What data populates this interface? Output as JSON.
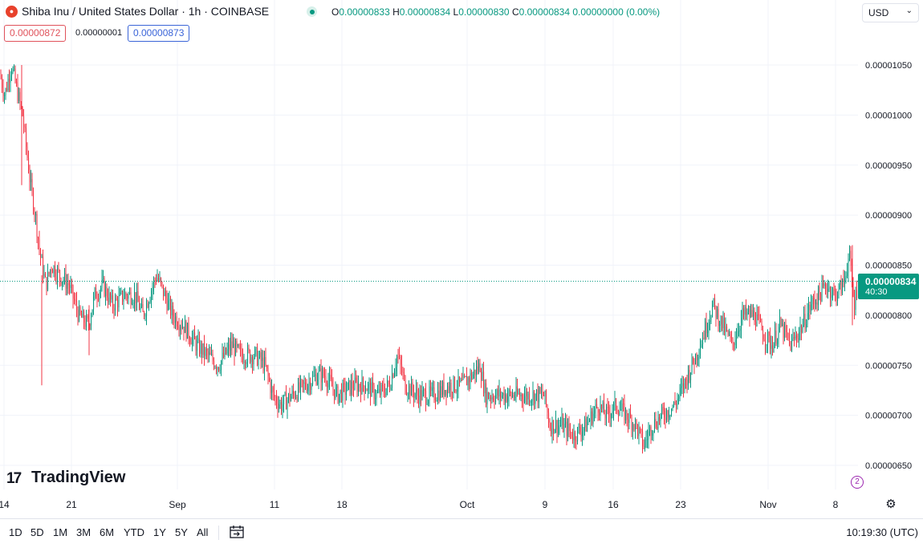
{
  "header": {
    "symbol_icon": "shiba-inu-logo-icon",
    "title": "Shiba Inu / United States Dollar · 1h · COINBASE",
    "ohlc": {
      "o_key": "O",
      "o_val": "0.00000833",
      "h_key": "H",
      "h_val": "0.00000834",
      "l_key": "L",
      "l_val": "0.00000830",
      "c_key": "C",
      "c_val": "0.00000834 0.00000000 (0.00%)"
    },
    "currency": "USD"
  },
  "quote": {
    "bid": "0.00000872",
    "spread": "0.00000001",
    "ask": "0.00000873"
  },
  "last": {
    "price": "0.00000834",
    "countdown": "40:30"
  },
  "logo": {
    "mark": "17",
    "text": "TradingView"
  },
  "bottom": {
    "ranges": [
      "1D",
      "5D",
      "1M",
      "3M",
      "6M",
      "YTD",
      "1Y",
      "5Y",
      "All"
    ],
    "clock": "10:19:30 (UTC)"
  },
  "colors": {
    "up": "#089981",
    "down": "#f23645",
    "grid": "#f0f3fa",
    "accent": "#089981"
  },
  "chart_data": {
    "type": "candlestick",
    "interval": "1h",
    "y_ticks": [
      6.5e-06,
      7e-06,
      7.5e-06,
      8e-06,
      8.5e-06,
      9e-06,
      9.5e-06,
      1e-05,
      1.05e-05
    ],
    "y_tick_labels": [
      "0.00000650",
      "0.00000700",
      "0.00000750",
      "0.00000800",
      "0.00000850",
      "0.00000900",
      "0.00000950",
      "0.00001000",
      "0.00001050"
    ],
    "x_tick_labels": [
      "14",
      "21",
      "Sep",
      "11",
      "18",
      "Oct",
      "9",
      "16",
      "23",
      "Nov",
      "8"
    ],
    "ylim": [
      6.4e-06,
      1.1e-05
    ],
    "grid": true,
    "last_price": 8.34e-06,
    "price_path": [
      [
        0,
        1.04e-05
      ],
      [
        6,
        1.02e-05
      ],
      [
        14,
        1.05e-05
      ],
      [
        28,
        1e-05
      ],
      [
        38,
        9.3e-06
      ],
      [
        44,
        9e-06
      ],
      [
        50,
        8.6e-06
      ],
      [
        57,
        8.3e-06
      ],
      [
        64,
        8.5e-06
      ],
      [
        74,
        8.4e-06
      ],
      [
        86,
        8.3e-06
      ],
      [
        98,
        8e-06
      ],
      [
        110,
        7.9e-06
      ],
      [
        118,
        8.2e-06
      ],
      [
        128,
        8.3e-06
      ],
      [
        140,
        8.1e-06
      ],
      [
        155,
        8.2e-06
      ],
      [
        168,
        8.2e-06
      ],
      [
        178,
        8e-06
      ],
      [
        186,
        8.2e-06
      ],
      [
        195,
        8.4e-06
      ],
      [
        205,
        8.2e-06
      ],
      [
        215,
        8e-06
      ],
      [
        228,
        7.9e-06
      ],
      [
        245,
        7.7e-06
      ],
      [
        258,
        7.6e-06
      ],
      [
        272,
        7.5e-06
      ],
      [
        288,
        7.7e-06
      ],
      [
        300,
        7.6e-06
      ],
      [
        318,
        7.6e-06
      ],
      [
        330,
        7.5e-06
      ],
      [
        340,
        7.2e-06
      ],
      [
        350,
        7.1e-06
      ],
      [
        364,
        7.2e-06
      ],
      [
        380,
        7.3e-06
      ],
      [
        395,
        7.4e-06
      ],
      [
        405,
        7.4e-06
      ],
      [
        420,
        7.2e-06
      ],
      [
        440,
        7.3e-06
      ],
      [
        455,
        7.3e-06
      ],
      [
        470,
        7.2e-06
      ],
      [
        485,
        7.3e-06
      ],
      [
        495,
        7.6e-06
      ],
      [
        505,
        7.3e-06
      ],
      [
        520,
        7.2e-06
      ],
      [
        540,
        7.2e-06
      ],
      [
        560,
        7.3e-06
      ],
      [
        575,
        7.3e-06
      ],
      [
        588,
        7.4e-06
      ],
      [
        598,
        7.5e-06
      ],
      [
        605,
        7.2e-06
      ],
      [
        625,
        7.2e-06
      ],
      [
        645,
        7.2e-06
      ],
      [
        665,
        7.2e-06
      ],
      [
        678,
        7.2e-06
      ],
      [
        685,
        6.9e-06
      ],
      [
        700,
        6.9e-06
      ],
      [
        715,
        6.8e-06
      ],
      [
        730,
        6.9e-06
      ],
      [
        745,
        7.1e-06
      ],
      [
        755,
        7e-06
      ],
      [
        768,
        7.1e-06
      ],
      [
        780,
        7e-06
      ],
      [
        792,
        6.9e-06
      ],
      [
        802,
        6.7e-06
      ],
      [
        812,
        6.9e-06
      ],
      [
        825,
        7e-06
      ],
      [
        840,
        7.1e-06
      ],
      [
        852,
        7.3e-06
      ],
      [
        862,
        7.5e-06
      ],
      [
        872,
        7.7e-06
      ],
      [
        880,
        7.9e-06
      ],
      [
        888,
        8.1e-06
      ],
      [
        900,
        7.9e-06
      ],
      [
        912,
        7.7e-06
      ],
      [
        925,
        8e-06
      ],
      [
        940,
        8e-06
      ],
      [
        952,
        7.8e-06
      ],
      [
        962,
        7.7e-06
      ],
      [
        972,
        7.9e-06
      ],
      [
        985,
        7.7e-06
      ],
      [
        1000,
        7.9e-06
      ],
      [
        1010,
        8.1e-06
      ],
      [
        1020,
        8.2e-06
      ],
      [
        1030,
        8.3e-06
      ],
      [
        1040,
        8.2e-06
      ],
      [
        1050,
        8.3e-06
      ],
      [
        1058,
        8.6e-06
      ],
      [
        1064,
        8.1e-06
      ],
      [
        1069,
        8.34e-06
      ]
    ]
  }
}
